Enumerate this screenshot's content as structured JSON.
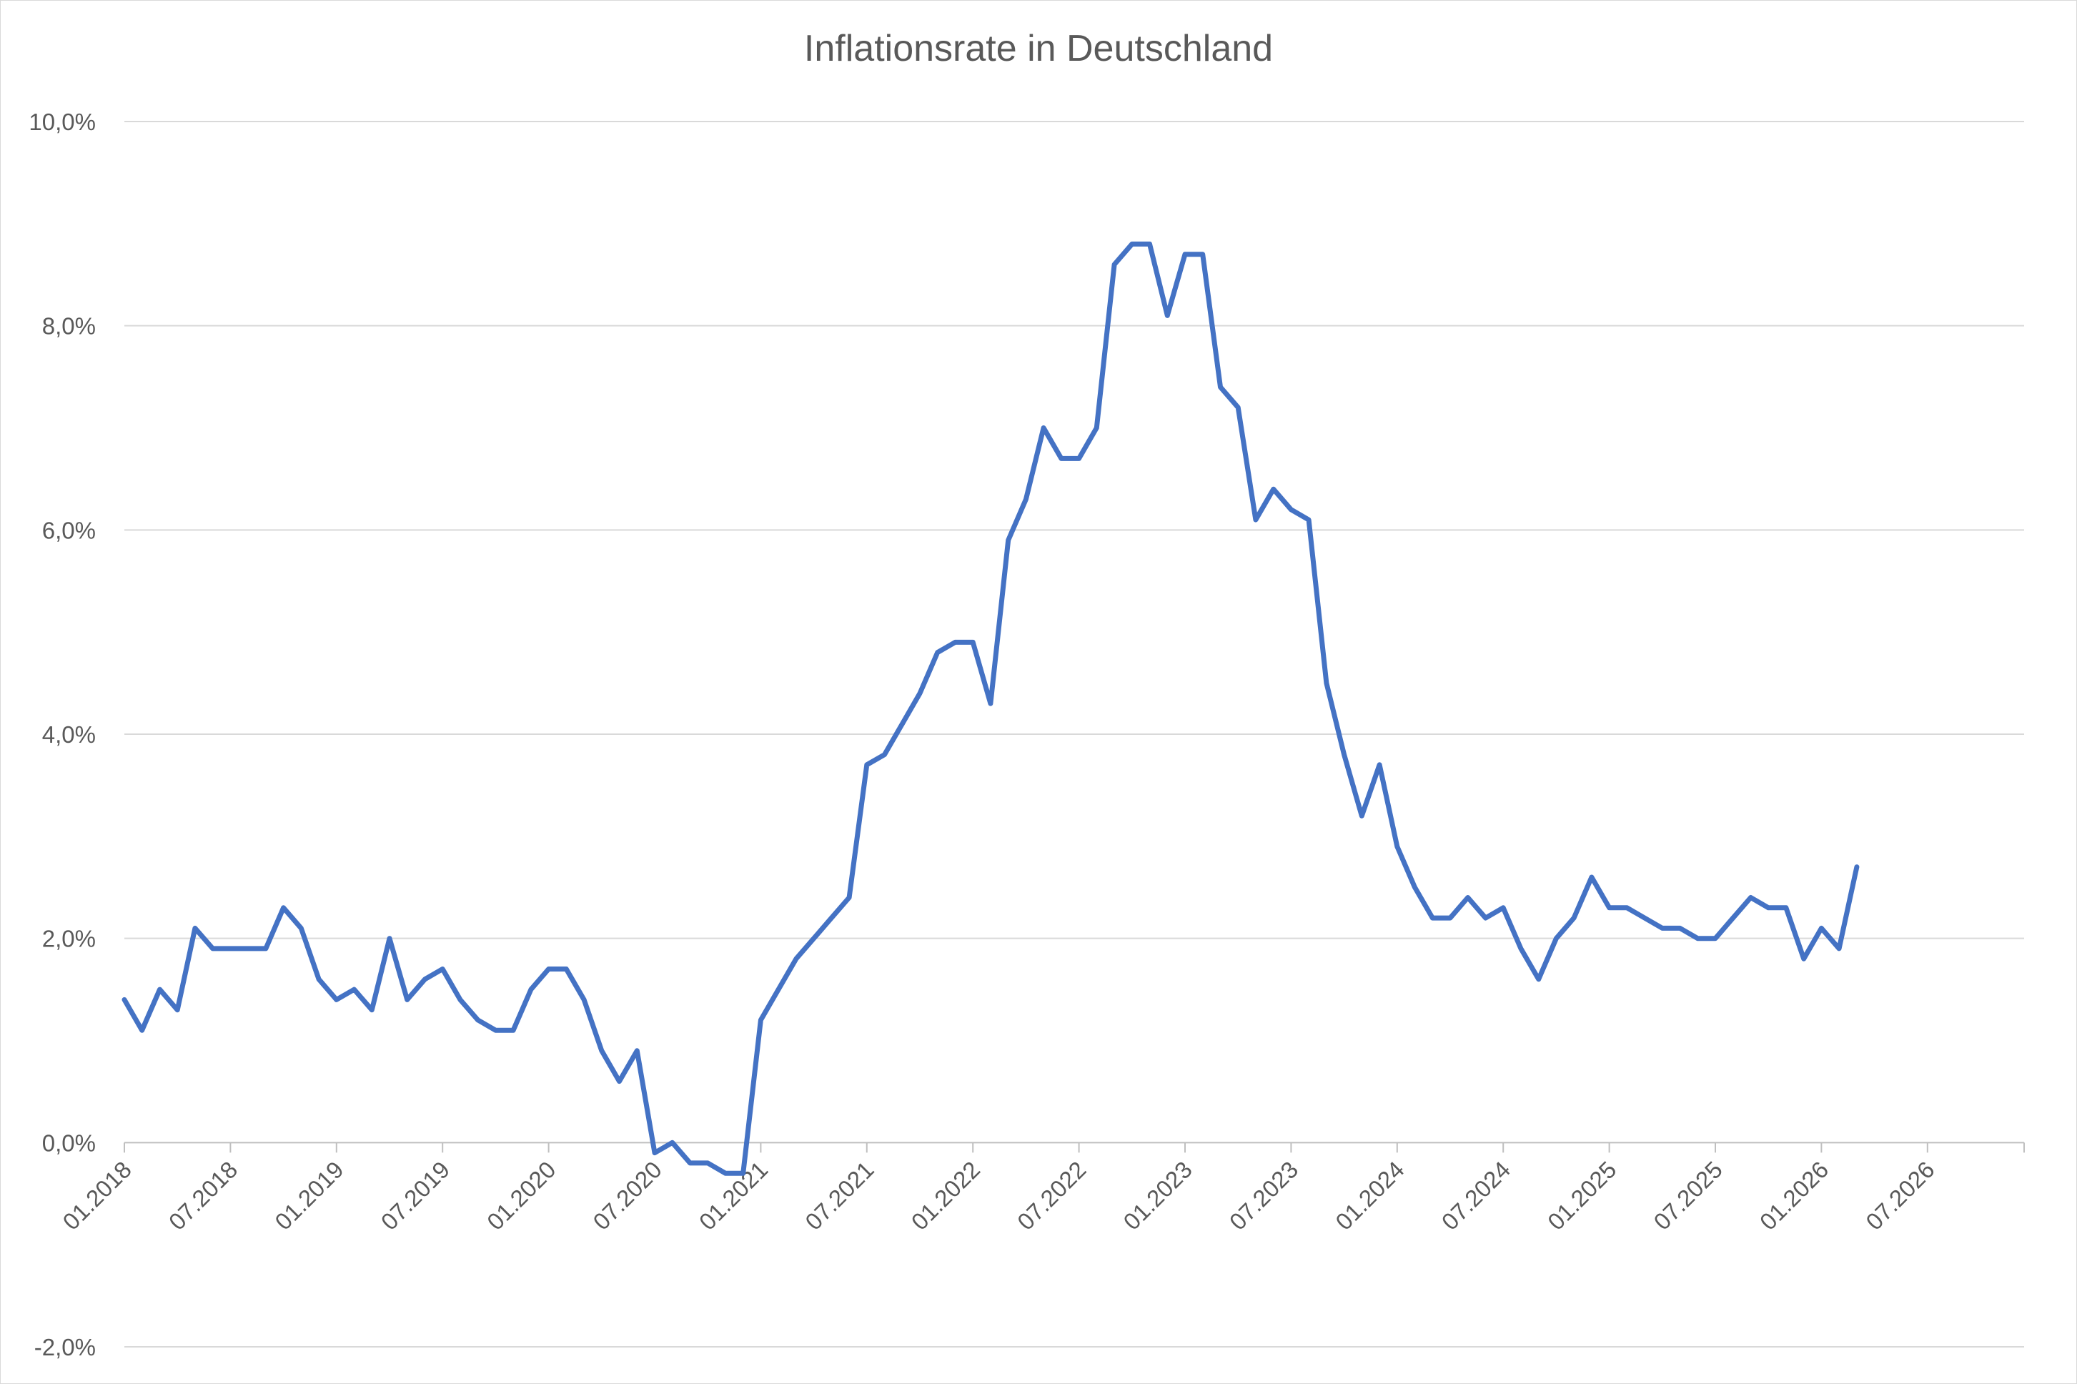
{
  "chart_data": {
    "type": "line",
    "title": "Inflationsrate in Deutschland",
    "xlabel": "",
    "ylabel": "",
    "x_start": "01.2018",
    "x_ticks": [
      "01.2018",
      "07.2018",
      "01.2019",
      "07.2019",
      "01.2020",
      "07.2020",
      "01.2021",
      "07.2021",
      "01.2022",
      "07.2022",
      "01.2023",
      "07.2023",
      "01.2024",
      "07.2024",
      "01.2025",
      "07.2025",
      "01.2026",
      "07.2026"
    ],
    "y_ticks": [
      "-2,0%",
      "0,0%",
      "2,0%",
      "4,0%",
      "6,0%",
      "8,0%",
      "10,0%"
    ],
    "ylim": [
      -2,
      10
    ],
    "grid": true,
    "series": [
      {
        "color": "#4472C4",
        "values": [
          1.4,
          1.1,
          1.5,
          1.3,
          2.1,
          1.9,
          1.9,
          1.9,
          1.9,
          2.3,
          2.1,
          1.6,
          1.4,
          1.5,
          1.3,
          2.0,
          1.4,
          1.6,
          1.7,
          1.4,
          1.2,
          1.1,
          1.1,
          1.5,
          1.7,
          1.7,
          1.4,
          0.9,
          0.6,
          0.9,
          -0.1,
          0.0,
          -0.2,
          -0.2,
          -0.3,
          -0.3,
          1.2,
          1.5,
          1.8,
          2.0,
          2.2,
          2.4,
          3.7,
          3.8,
          4.1,
          4.4,
          4.8,
          4.9,
          4.9,
          4.3,
          5.9,
          6.3,
          7.0,
          6.7,
          6.7,
          7.0,
          8.6,
          8.8,
          8.8,
          8.1,
          8.7,
          8.7,
          7.4,
          7.2,
          6.1,
          6.4,
          6.2,
          6.1,
          4.5,
          3.8,
          3.2,
          3.7,
          2.9,
          2.5,
          2.2,
          2.2,
          2.4,
          2.2,
          2.3,
          1.9,
          1.6,
          2.0,
          2.2,
          2.6,
          2.3,
          2.3,
          2.2,
          2.1,
          2.1,
          2.0,
          2.0,
          2.2,
          2.4,
          2.3,
          2.3,
          1.8,
          2.1,
          1.9,
          2.7
        ]
      }
    ]
  }
}
